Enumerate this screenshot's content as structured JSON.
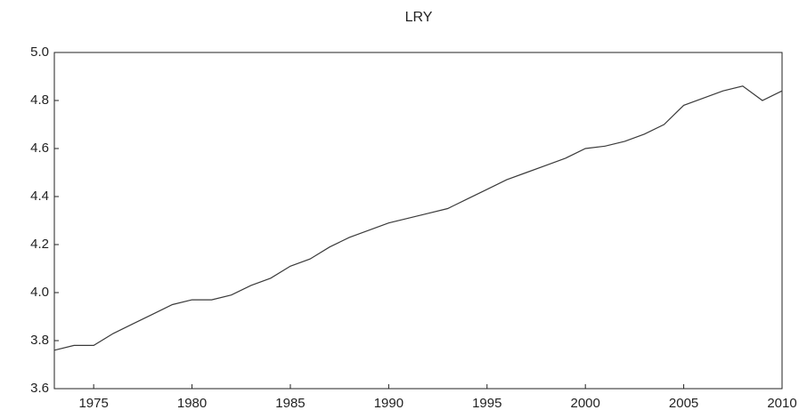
{
  "chart_data": {
    "type": "line",
    "title": "LRY",
    "x": [
      1973,
      1974,
      1975,
      1976,
      1977,
      1978,
      1979,
      1980,
      1981,
      1982,
      1983,
      1984,
      1985,
      1986,
      1987,
      1988,
      1989,
      1990,
      1991,
      1992,
      1993,
      1994,
      1995,
      1996,
      1997,
      1998,
      1999,
      2000,
      2001,
      2002,
      2003,
      2004,
      2005,
      2006,
      2007,
      2008,
      2009,
      2010
    ],
    "series": [
      {
        "name": "LRY",
        "color": "#3a3a3a",
        "values": [
          3.76,
          3.78,
          3.78,
          3.83,
          3.87,
          3.91,
          3.95,
          3.97,
          3.97,
          3.99,
          4.03,
          4.06,
          4.11,
          4.14,
          4.19,
          4.23,
          4.26,
          4.29,
          4.31,
          4.33,
          4.35,
          4.39,
          4.43,
          4.47,
          4.5,
          4.53,
          4.56,
          4.6,
          4.61,
          4.63,
          4.66,
          4.7,
          4.78,
          4.81,
          4.84,
          4.86,
          4.8,
          4.84
        ]
      }
    ],
    "xlim": [
      1973,
      2010
    ],
    "xticks": [
      1975,
      1980,
      1985,
      1990,
      1995,
      2000,
      2005,
      2010
    ],
    "ylim": [
      3.6,
      5.0
    ],
    "yticks": [
      3.6,
      3.8,
      {
        "value": 4,
        "label": "4.0"
      },
      4.2,
      4.4,
      4.6,
      4.8,
      {
        "value": 5,
        "label": "5.0"
      }
    ]
  }
}
